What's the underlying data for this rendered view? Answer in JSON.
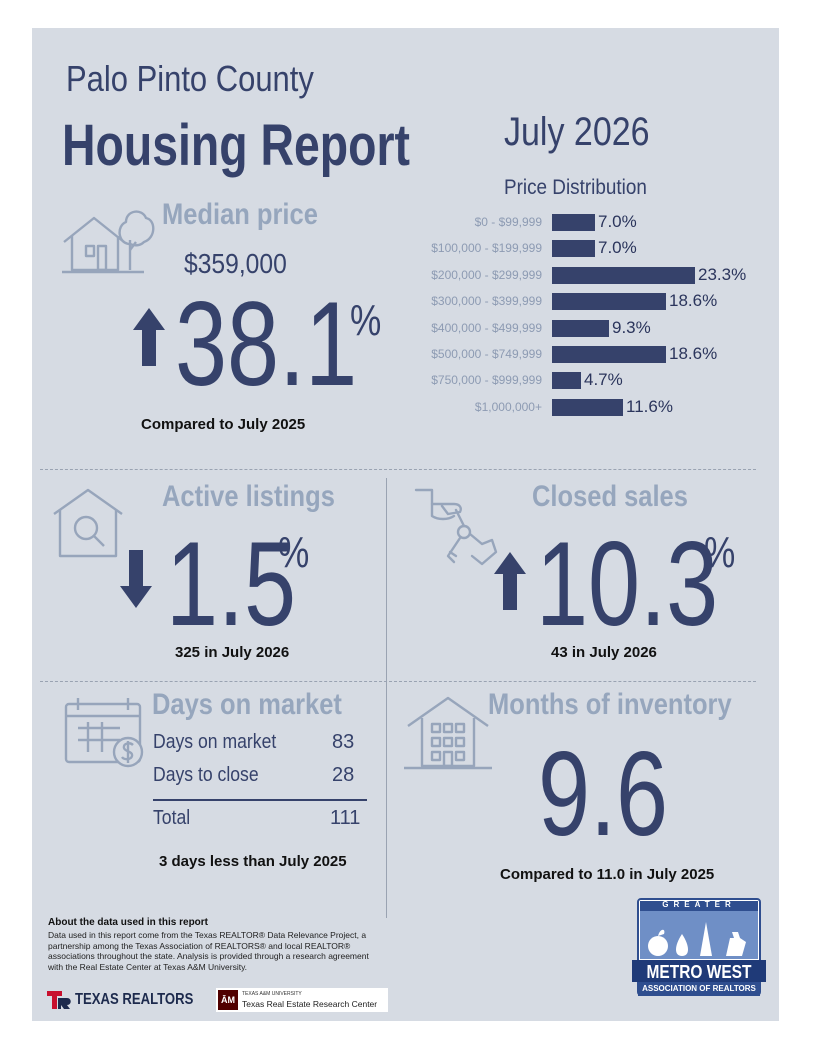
{
  "header": {
    "county": "Palo Pinto County",
    "title": "Housing Report",
    "month": "July 2026"
  },
  "median_price": {
    "title": "Median price",
    "price": "$359,000",
    "change": "38.1",
    "percent_sign": "%",
    "direction": "up",
    "compare": "Compared to July 2025"
  },
  "price_distribution": {
    "title": "Price Distribution",
    "rows": [
      {
        "label": "$0 - $99,999",
        "value": 7.0,
        "text": "7.0%"
      },
      {
        "label": "$100,000 - $199,999",
        "value": 7.0,
        "text": "7.0%"
      },
      {
        "label": "$200,000 - $299,999",
        "value": 23.3,
        "text": "23.3%"
      },
      {
        "label": "$300,000 - $399,999",
        "value": 18.6,
        "text": "18.6%"
      },
      {
        "label": "$400,000 - $499,999",
        "value": 9.3,
        "text": "9.3%"
      },
      {
        "label": "$500,000 - $749,999",
        "value": 18.6,
        "text": "18.6%"
      },
      {
        "label": "$750,000 - $999,999",
        "value": 4.7,
        "text": "4.7%"
      },
      {
        "label": "$1,000,000+",
        "value": 11.6,
        "text": "11.6%"
      }
    ]
  },
  "chart_data": {
    "type": "bar",
    "orientation": "horizontal",
    "title": "Price Distribution",
    "categories": [
      "$0 - $99,999",
      "$100,000 - $199,999",
      "$200,000 - $299,999",
      "$300,000 - $399,999",
      "$400,000 - $499,999",
      "$500,000 - $749,999",
      "$750,000 - $999,999",
      "$1,000,000+"
    ],
    "values": [
      7.0,
      7.0,
      23.3,
      18.6,
      9.3,
      18.6,
      4.7,
      11.6
    ],
    "unit": "%"
  },
  "active_listings": {
    "title": "Active listings",
    "change": "1.5",
    "percent_sign": "%",
    "direction": "down",
    "caption": "325 in July 2026"
  },
  "closed_sales": {
    "title": "Closed sales",
    "change": "10.3",
    "percent_sign": "%",
    "direction": "up",
    "caption": "43 in July 2026"
  },
  "days_on_market": {
    "title": "Days on market",
    "rows": [
      {
        "label": "Days on market",
        "value": "83"
      },
      {
        "label": "Days to close",
        "value": "28"
      }
    ],
    "total_label": "Total",
    "total_value": "111",
    "caption": "3 days less than July 2025"
  },
  "months_inventory": {
    "title": "Months of inventory",
    "value": "9.6",
    "caption": "Compared to 11.0 in July 2025"
  },
  "footer": {
    "about_title": "About the data used in this report",
    "about_text": "Data used in this report come from the Texas REALTOR® Data Relevance Project, a partnership among the Texas Association of REALTORS® and local REALTOR® associations throughout the state. Analysis is provided through a research agreement with the Real Estate Center at Texas A&M University.",
    "texas_realtors": "TEXAS REALTORS",
    "tamu_small": "TEXAS A&M UNIVERSITY",
    "tamu_center": "Texas Real Estate Research Center",
    "tamu_mark": "ĀM"
  },
  "logo": {
    "top": "GREATER",
    "middle": "METRO WEST",
    "bottom": "ASSOCIATION OF REALTORS"
  },
  "colors": {
    "card_bg": "#d6dbe3",
    "navy": "#36426b",
    "muted": "#96a6bd",
    "brand_red": "#c8102e",
    "logo_blue": "#2f4e8f"
  }
}
